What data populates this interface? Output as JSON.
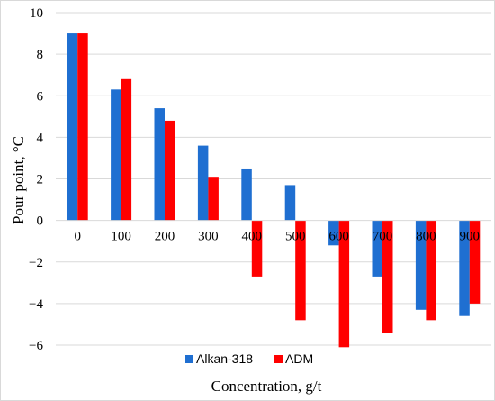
{
  "chart_data": {
    "type": "bar",
    "title": "",
    "xlabel": "Concentration, g/t",
    "ylabel": "Pour point, °C",
    "ylim": [
      -6,
      10
    ],
    "yticks": [
      10,
      8,
      6,
      4,
      2,
      0,
      -2,
      -4,
      -6
    ],
    "ytick_labels": [
      "10",
      "8",
      "6",
      "4",
      "2",
      "0",
      "−2",
      "−4",
      "−6"
    ],
    "grid": true,
    "legend_position": "bottom",
    "categories": [
      "0",
      "100",
      "200",
      "300",
      "400",
      "500",
      "600",
      "700",
      "800",
      "900"
    ],
    "series": [
      {
        "name": "Alkan-318",
        "color": "#1f6fd1",
        "values": [
          9.0,
          6.3,
          5.4,
          3.6,
          2.5,
          1.7,
          -1.2,
          -2.7,
          -4.3,
          -4.6
        ]
      },
      {
        "name": "ADM",
        "color": "#ff0000",
        "values": [
          9.0,
          6.8,
          4.8,
          2.1,
          -2.7,
          -4.8,
          -6.1,
          -5.4,
          -4.8,
          -4.0
        ]
      }
    ]
  }
}
